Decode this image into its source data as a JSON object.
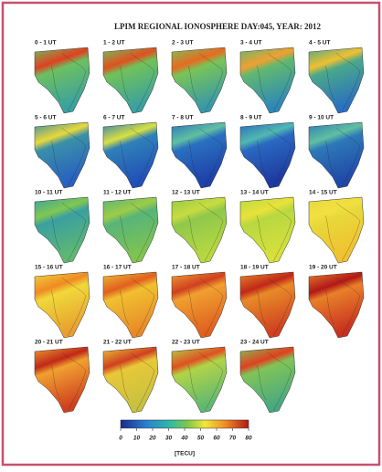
{
  "title": "LPIM REGIONAL IONOSPHERE DAY:045, YEAR: 2012",
  "panels": [
    {
      "label": "0 - 1 UT"
    },
    {
      "label": "1 - 2 UT"
    },
    {
      "label": "2 - 3 UT"
    },
    {
      "label": "3 - 4 UT"
    },
    {
      "label": "4 - 5 UT"
    },
    {
      "label": "5 - 6 UT"
    },
    {
      "label": "6 - 7 UT"
    },
    {
      "label": "7 - 8 UT"
    },
    {
      "label": "8 - 9 UT"
    },
    {
      "label": "9 - 10 UT"
    },
    {
      "label": "10 - 11 UT"
    },
    {
      "label": "11 - 12 UT"
    },
    {
      "label": "12 - 13 UT"
    },
    {
      "label": "13 - 14 UT"
    },
    {
      "label": "14 - 15 UT"
    },
    {
      "label": "15 - 16 UT"
    },
    {
      "label": "16 - 17 UT"
    },
    {
      "label": "17 - 18 UT"
    },
    {
      "label": "18 - 19 UT"
    },
    {
      "label": "19 - 20 UT"
    },
    {
      "label": "20 - 21 UT"
    },
    {
      "label": "21 - 22 UT"
    },
    {
      "label": "22 - 23 UT"
    },
    {
      "label": "23 - 24 UT"
    }
  ],
  "colorbar": {
    "lim": [
      0,
      80
    ],
    "ticks": [
      0,
      10,
      20,
      30,
      40,
      50,
      60,
      70,
      80
    ],
    "label": "[TECU]"
  }
}
